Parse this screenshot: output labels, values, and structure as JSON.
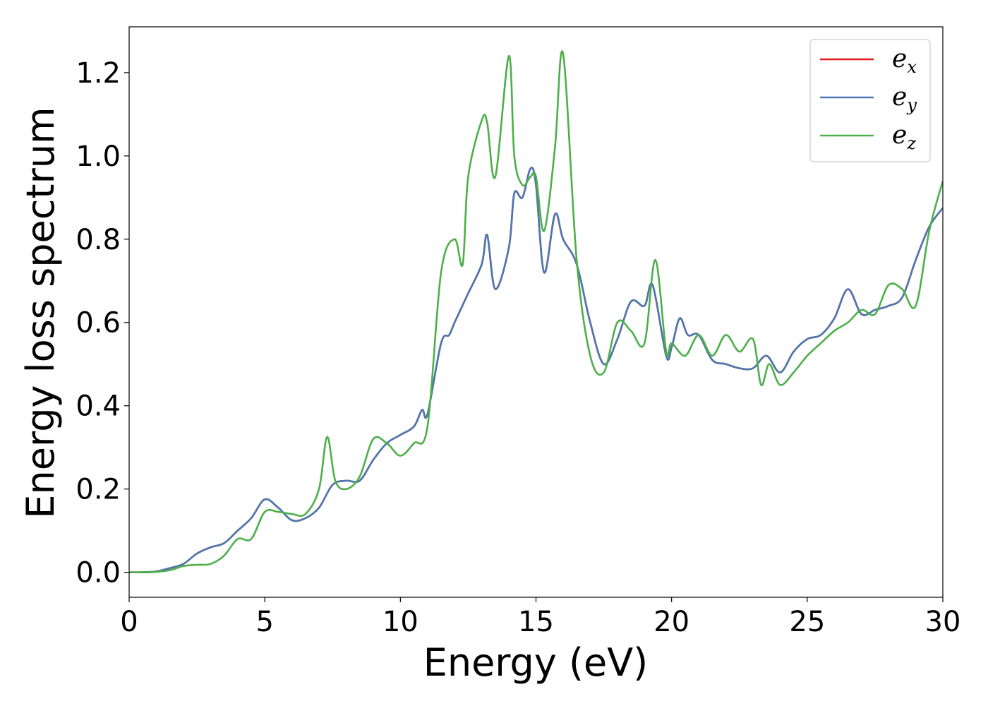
{
  "chart_data": {
    "type": "line",
    "title": "",
    "xlabel": "Energy (eV)",
    "ylabel": "Energy loss spectrum",
    "xlim": [
      0,
      30
    ],
    "ylim": [
      -0.06,
      1.31
    ],
    "xticks": [
      0,
      5,
      10,
      15,
      20,
      25,
      30
    ],
    "xtick_labels": [
      "0",
      "5",
      "10",
      "15",
      "20",
      "25",
      "30"
    ],
    "yticks": [
      0.0,
      0.2,
      0.4,
      0.6,
      0.8,
      1.0,
      1.2
    ],
    "ytick_labels": [
      "0.0",
      "0.2",
      "0.4",
      "0.6",
      "0.8",
      "1.0",
      "1.2"
    ],
    "grid": false,
    "legend_position": "top-right",
    "series": [
      {
        "name": "e_x",
        "label_base": "e",
        "label_sub": "x",
        "color": "#e41a1c",
        "x": [
          0,
          0.5,
          1.0,
          1.5,
          2.0,
          2.5,
          3.0,
          3.5,
          4.0,
          4.5,
          5.0,
          5.5,
          6.0,
          6.5,
          7.0,
          7.5,
          8.0,
          8.5,
          9.0,
          9.5,
          10.0,
          10.5,
          10.8,
          11.0,
          11.5,
          11.8,
          12.0,
          12.5,
          13.0,
          13.2,
          13.5,
          14.0,
          14.2,
          14.5,
          14.8,
          15.0,
          15.3,
          15.7,
          16.0,
          16.5,
          17.0,
          17.5,
          18.0,
          18.5,
          19.0,
          19.3,
          19.8,
          20.0,
          20.3,
          20.6,
          21.0,
          21.5,
          22.0,
          22.5,
          23.0,
          23.5,
          24.0,
          24.5,
          25.0,
          25.5,
          26.0,
          26.5,
          27.0,
          27.5,
          28.0,
          28.5,
          29.0,
          29.5,
          30.0
        ],
        "y": [
          0.0,
          0.0,
          0.002,
          0.01,
          0.02,
          0.045,
          0.06,
          0.07,
          0.1,
          0.13,
          0.175,
          0.155,
          0.125,
          0.13,
          0.155,
          0.21,
          0.22,
          0.22,
          0.27,
          0.31,
          0.33,
          0.35,
          0.39,
          0.38,
          0.55,
          0.57,
          0.6,
          0.67,
          0.74,
          0.81,
          0.68,
          0.78,
          0.91,
          0.9,
          0.97,
          0.93,
          0.72,
          0.86,
          0.8,
          0.74,
          0.6,
          0.5,
          0.56,
          0.65,
          0.64,
          0.69,
          0.52,
          0.54,
          0.61,
          0.57,
          0.57,
          0.51,
          0.5,
          0.49,
          0.49,
          0.52,
          0.48,
          0.53,
          0.56,
          0.57,
          0.61,
          0.68,
          0.62,
          0.63,
          0.64,
          0.66,
          0.75,
          0.83,
          0.875
        ]
      },
      {
        "name": "e_y",
        "label_base": "e",
        "label_sub": "y",
        "color": "#4a78b0",
        "x": [
          0,
          0.5,
          1.0,
          1.5,
          2.0,
          2.5,
          3.0,
          3.5,
          4.0,
          4.5,
          5.0,
          5.5,
          6.0,
          6.5,
          7.0,
          7.5,
          8.0,
          8.5,
          9.0,
          9.5,
          10.0,
          10.5,
          10.8,
          11.0,
          11.5,
          11.8,
          12.0,
          12.5,
          13.0,
          13.2,
          13.5,
          14.0,
          14.2,
          14.5,
          14.8,
          15.0,
          15.3,
          15.7,
          16.0,
          16.5,
          17.0,
          17.5,
          18.0,
          18.5,
          19.0,
          19.3,
          19.8,
          20.0,
          20.3,
          20.6,
          21.0,
          21.5,
          22.0,
          22.5,
          23.0,
          23.5,
          24.0,
          24.5,
          25.0,
          25.5,
          26.0,
          26.5,
          27.0,
          27.5,
          28.0,
          28.5,
          29.0,
          29.5,
          30.0
        ],
        "y": [
          0.0,
          0.0,
          0.002,
          0.01,
          0.02,
          0.045,
          0.06,
          0.07,
          0.1,
          0.13,
          0.175,
          0.155,
          0.125,
          0.13,
          0.155,
          0.21,
          0.22,
          0.22,
          0.27,
          0.31,
          0.33,
          0.35,
          0.39,
          0.38,
          0.55,
          0.57,
          0.6,
          0.67,
          0.74,
          0.81,
          0.68,
          0.78,
          0.91,
          0.9,
          0.97,
          0.93,
          0.72,
          0.86,
          0.8,
          0.74,
          0.6,
          0.5,
          0.56,
          0.65,
          0.64,
          0.69,
          0.52,
          0.54,
          0.61,
          0.57,
          0.57,
          0.51,
          0.5,
          0.49,
          0.49,
          0.52,
          0.48,
          0.53,
          0.56,
          0.57,
          0.61,
          0.68,
          0.62,
          0.63,
          0.64,
          0.66,
          0.75,
          0.83,
          0.875
        ]
      },
      {
        "name": "e_z",
        "label_base": "e",
        "label_sub": "z",
        "color": "#4daf4a",
        "x": [
          0,
          0.5,
          1.0,
          1.5,
          2.0,
          2.5,
          3.0,
          3.5,
          4.0,
          4.5,
          5.0,
          5.5,
          6.0,
          6.5,
          7.0,
          7.3,
          7.6,
          8.0,
          8.5,
          9.0,
          9.5,
          10.0,
          10.5,
          11.0,
          11.5,
          12.0,
          12.3,
          12.5,
          13.0,
          13.2,
          13.5,
          14.0,
          14.2,
          14.5,
          14.8,
          15.0,
          15.3,
          15.7,
          16.0,
          16.5,
          17.0,
          17.5,
          18.0,
          18.5,
          19.0,
          19.4,
          19.8,
          20.0,
          20.5,
          21.0,
          21.5,
          22.0,
          22.5,
          23.0,
          23.3,
          23.6,
          24.0,
          24.5,
          25.0,
          25.5,
          26.0,
          26.5,
          27.0,
          27.5,
          28.0,
          28.5,
          29.0,
          29.5,
          30.0
        ],
        "y": [
          0.0,
          0.0,
          0.001,
          0.005,
          0.015,
          0.018,
          0.02,
          0.04,
          0.08,
          0.08,
          0.145,
          0.145,
          0.14,
          0.14,
          0.2,
          0.325,
          0.22,
          0.2,
          0.23,
          0.32,
          0.31,
          0.28,
          0.31,
          0.35,
          0.72,
          0.8,
          0.74,
          0.95,
          1.085,
          1.08,
          0.95,
          1.24,
          1.0,
          0.93,
          0.95,
          0.95,
          0.82,
          1.02,
          1.245,
          0.75,
          0.52,
          0.48,
          0.6,
          0.58,
          0.55,
          0.75,
          0.53,
          0.55,
          0.52,
          0.57,
          0.52,
          0.57,
          0.53,
          0.56,
          0.45,
          0.5,
          0.45,
          0.48,
          0.52,
          0.55,
          0.58,
          0.6,
          0.63,
          0.62,
          0.69,
          0.68,
          0.64,
          0.82,
          0.94
        ]
      }
    ]
  }
}
